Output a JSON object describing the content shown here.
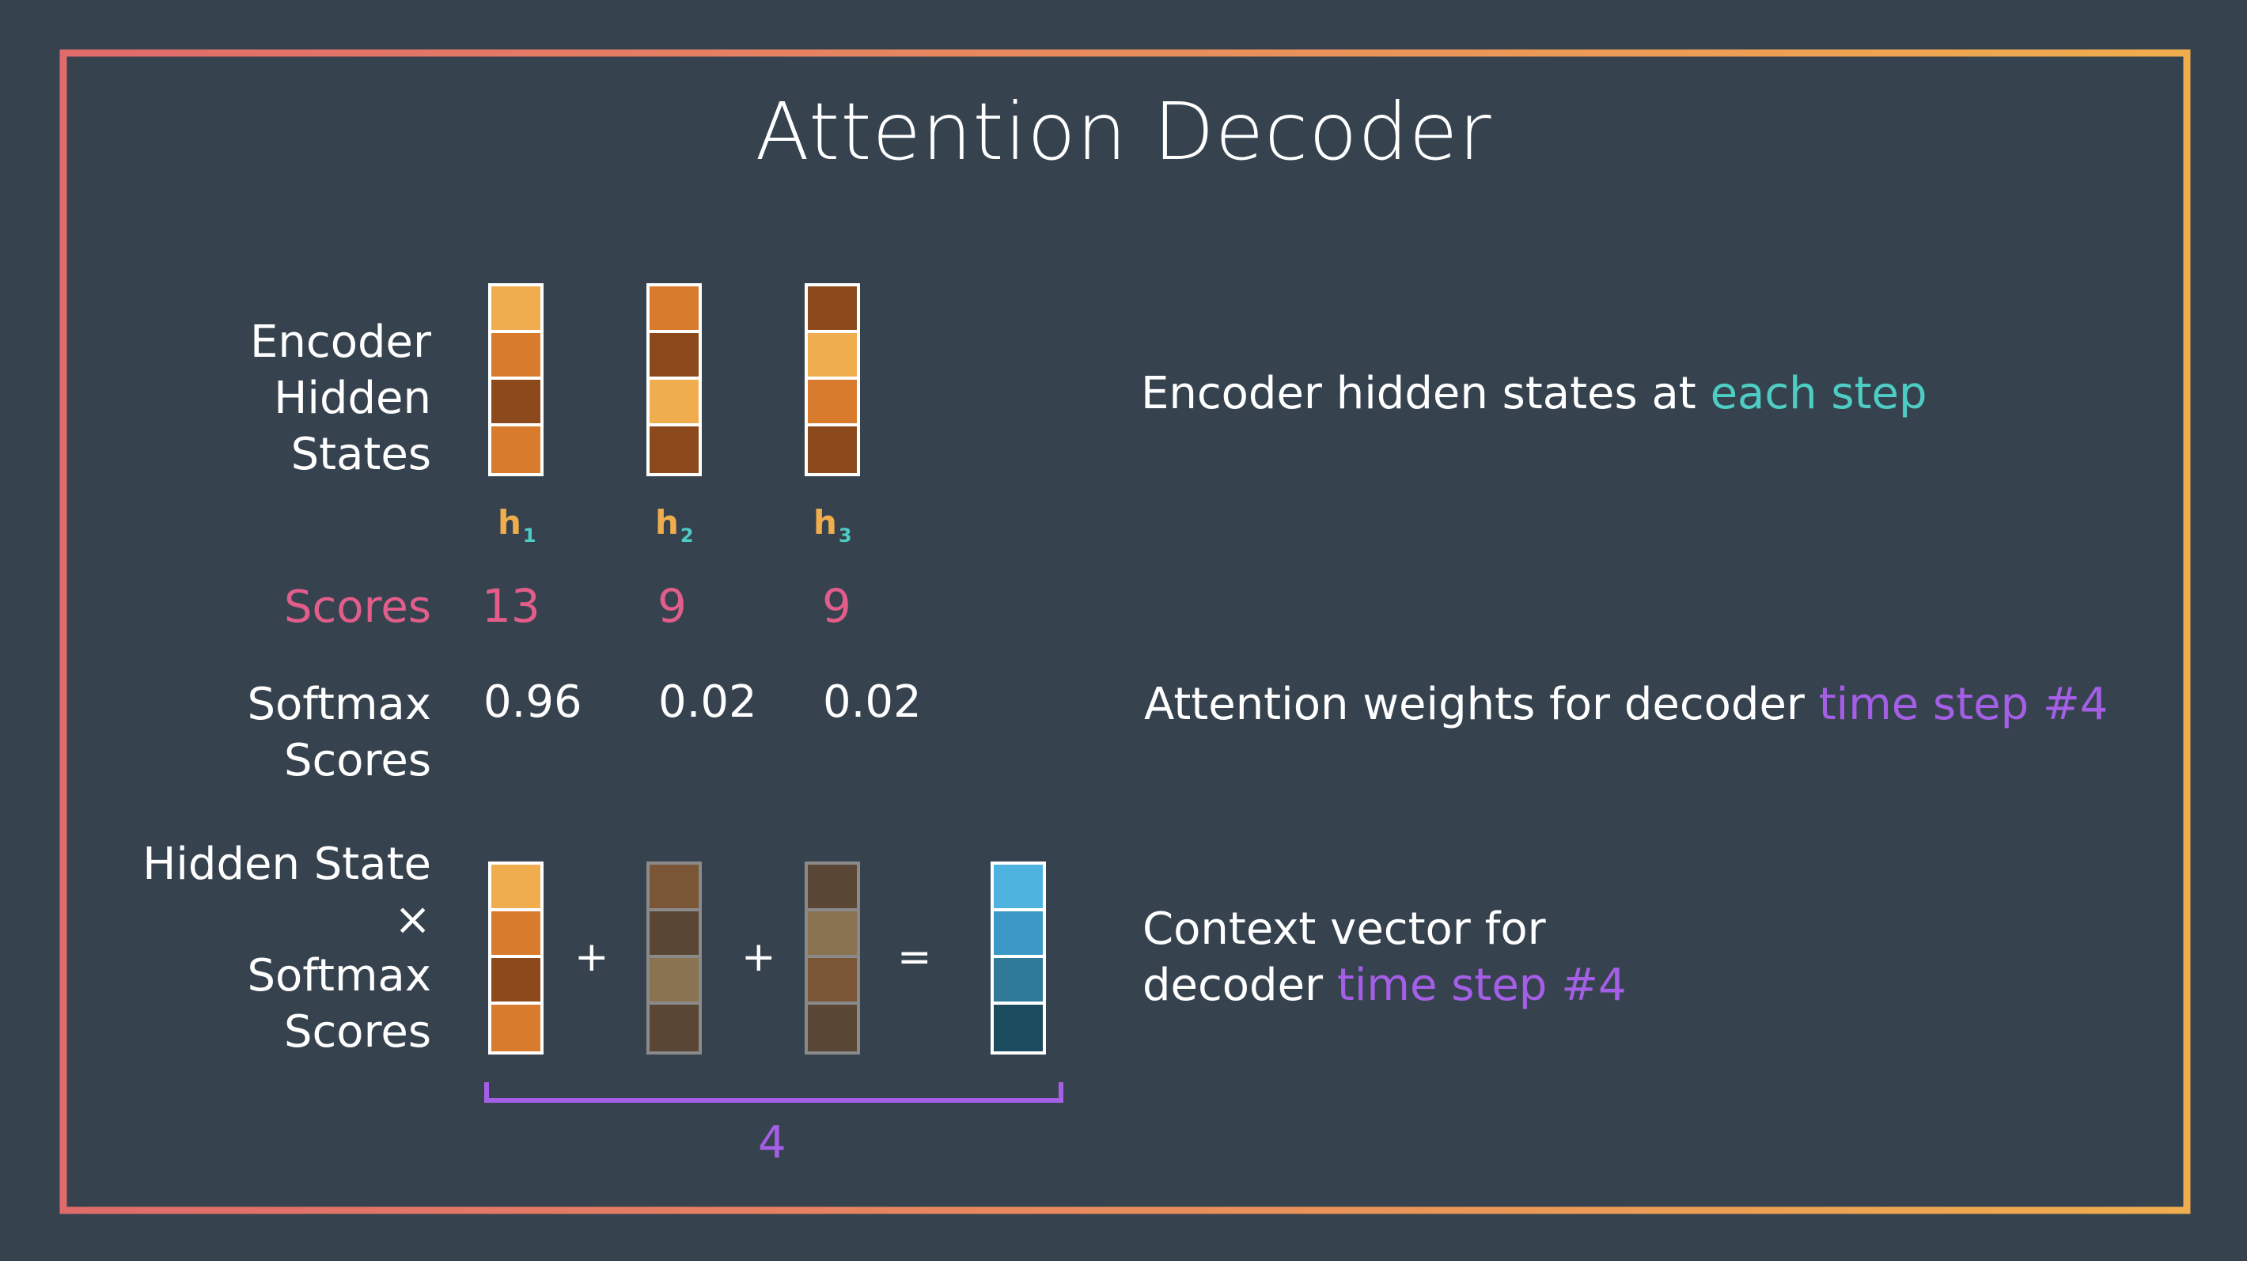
{
  "title": "Attention Decoder",
  "frame": {
    "gradient_start": "#e06b6b",
    "gradient_end": "#f0ad4e"
  },
  "labels": {
    "encoder_hidden_states": [
      "Encoder",
      "Hidden",
      "States"
    ],
    "scores": "Scores",
    "softmax_scores": [
      "Softmax",
      "Scores"
    ],
    "product": [
      "Hidden State",
      "×",
      "Softmax",
      "Scores"
    ]
  },
  "hidden_states": [
    {
      "name": "h",
      "sub": "1",
      "colors": [
        "#f0ad4e",
        "#d97b2c",
        "#8c4a1c",
        "#d97b2c"
      ]
    },
    {
      "name": "h",
      "sub": "2",
      "colors": [
        "#d97b2c",
        "#8c4a1c",
        "#f0ad4e",
        "#8c4a1c"
      ]
    },
    {
      "name": "h",
      "sub": "3",
      "colors": [
        "#8c4a1c",
        "#f0ad4e",
        "#d97b2c",
        "#8c4a1c"
      ]
    }
  ],
  "scores": [
    "13",
    "9",
    "9"
  ],
  "softmax": [
    "0.96",
    "0.02",
    "0.02"
  ],
  "weighted_vectors": [
    [
      "#f0ad4e",
      "#d97b2c",
      "#8c4a1c",
      "#d97b2c"
    ],
    [
      "#7a5637",
      "#5a4634",
      "#8a7350",
      "#5a4634"
    ],
    [
      "#5a4634",
      "#8a7350",
      "#7a5637",
      "#5a4634"
    ]
  ],
  "context_vector": [
    "#4fb3e0",
    "#3b98c7",
    "#2f7a99",
    "#1c4a5e"
  ],
  "operators": [
    "+",
    "+",
    "="
  ],
  "bracket_label": "4",
  "descriptions": {
    "encoder": {
      "text": "Encoder hidden states at ",
      "highlight": "each step"
    },
    "attention": {
      "text": "Attention weights for decoder ",
      "highlight": "time step #4"
    },
    "context_line1": "Context vector for",
    "context_line2": {
      "text": "decoder ",
      "highlight": "time step #4"
    }
  }
}
